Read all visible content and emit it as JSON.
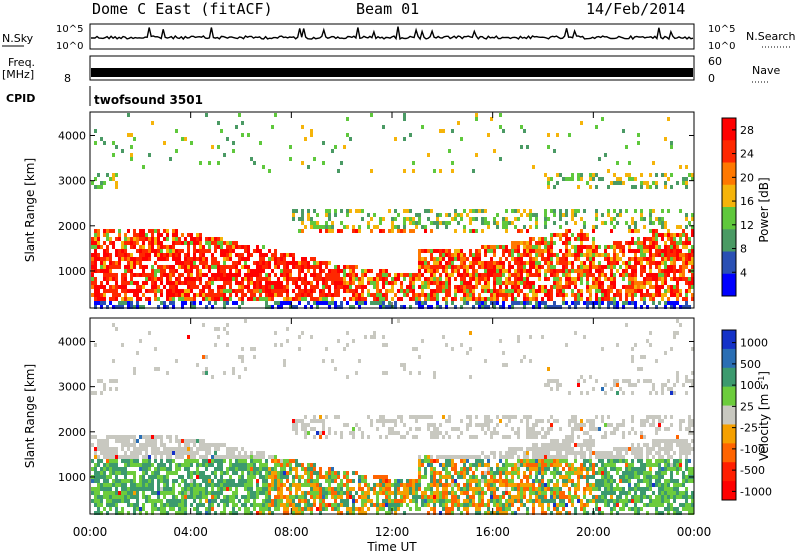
{
  "header": {
    "title": "Dome C East (fitACF)",
    "beam": "Beam 01",
    "date": "14/Feb/2014"
  },
  "status": {
    "nsky_label": "N.Sky",
    "nsky_top": "10^5",
    "nsky_bottom": "10^0",
    "nsearch_label": "N.Search",
    "nsearch_top": "10^5",
    "nsearch_bottom": "10^0",
    "freq_label": "Freq.",
    "freq_unit": "[MHz]",
    "freq_top": "",
    "freq_value": "8",
    "nave_label": "Nave",
    "nave_top": "60",
    "nave_bottom": "0",
    "cpid_label": "CPID",
    "cpid_value": "twofsound 3501",
    "line_color": "#000000"
  },
  "chart_data": [
    {
      "type": "heatmap",
      "name": "power",
      "ylabel": "Slant Range [km]",
      "xlabel": "",
      "x_ticks": [
        "00:00",
        "04:00",
        "08:00",
        "12:00",
        "16:00",
        "20:00",
        "00:00"
      ],
      "xlim_hours": [
        0,
        24
      ],
      "y_ticks": [
        1000,
        2000,
        3000,
        4000
      ],
      "ylim": [
        180,
        4520
      ],
      "colorbar": {
        "label": "Power [dB]",
        "ticks": [
          4,
          8,
          12,
          16,
          20,
          24,
          28
        ],
        "range": [
          0,
          30
        ],
        "colors": [
          "#0000ff",
          "#2a50b4",
          "#4a9a64",
          "#5fc83c",
          "#f5b40a",
          "#ff7800",
          "#ff2800",
          "#ff0000"
        ]
      },
      "description_bands": [
        {
          "x_start": 0,
          "x_end": 24,
          "range_start": 200,
          "range_end": 2500
        }
      ]
    },
    {
      "type": "heatmap",
      "name": "velocity",
      "ylabel": "Slant Range [km]",
      "xlabel": "Time UT",
      "x_ticks": [
        "00:00",
        "04:00",
        "08:00",
        "12:00",
        "16:00",
        "20:00",
        "00:00"
      ],
      "xlim_hours": [
        0,
        24
      ],
      "y_ticks": [
        1000,
        2000,
        3000,
        4000
      ],
      "ylim": [
        180,
        4520
      ],
      "colorbar": {
        "label": "Velocity [m s^-1]",
        "ticks": [
          "1000",
          "500",
          "100",
          "25",
          "-25",
          "-100",
          "-500",
          "-1000"
        ],
        "colors": [
          "#1432c8",
          "#2a6eb4",
          "#3c9a6e",
          "#6ccc3c",
          "#c8c8c0",
          "#f5a000",
          "#ff6400",
          "#ff1e00",
          "#ff0000"
        ]
      }
    }
  ]
}
